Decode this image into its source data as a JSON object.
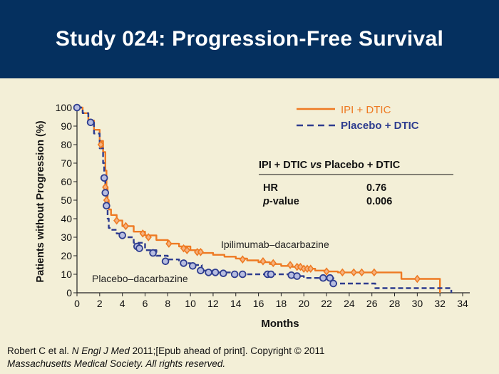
{
  "header": {
    "title": "Study 024: Progression-Free Survival"
  },
  "citation": {
    "part1": "Robert C et al. ",
    "journal": "N Engl J Med",
    "part2": " 2011;[Epub ahead of print]. Copyright © 2011",
    "line2": "Massachusetts Medical Society. All rights reserved."
  },
  "colors": {
    "header_bg": "#05305f",
    "background": "#f3efd7",
    "ipi": "#ee7a23",
    "placebo": "#2e3d8f"
  },
  "chart_data": {
    "type": "line",
    "xlabel": "Months",
    "ylabel": "Patients without Progression (%)",
    "xlim": [
      0,
      34
    ],
    "ylim": [
      0,
      100
    ],
    "xticks": [
      0,
      2,
      4,
      6,
      8,
      10,
      12,
      14,
      16,
      18,
      20,
      22,
      24,
      26,
      28,
      30,
      32,
      34
    ],
    "yticks": [
      0,
      10,
      20,
      30,
      40,
      50,
      60,
      70,
      80,
      90,
      100
    ],
    "grid": false,
    "legend_position": "top-right",
    "series": [
      {
        "name": "IPI + DTIC",
        "label": "Ipilimumab–dacarbazine",
        "color": "#ee7a23",
        "style": "solid",
        "marker": "diamond",
        "x": [
          0,
          0.5,
          1,
          1.5,
          2,
          2.3,
          2.5,
          2.6,
          2.7,
          2.8,
          3,
          3.5,
          4,
          5,
          6,
          7,
          8,
          9,
          10,
          11,
          12,
          13,
          14,
          15,
          16,
          17,
          18,
          19,
          20,
          21,
          22,
          23,
          24,
          25,
          26,
          27,
          28.6,
          29,
          30,
          31,
          32,
          32
        ],
        "y": [
          100,
          97,
          93,
          88,
          82,
          76,
          66,
          57,
          50,
          45,
          42,
          39,
          36,
          33,
          31,
          28.5,
          26.5,
          25,
          23,
          21.5,
          20.5,
          19.5,
          18.5,
          17.5,
          16.5,
          15.5,
          14.5,
          14,
          13,
          12,
          11.5,
          11,
          11,
          11,
          11,
          11,
          7.5,
          7.5,
          7.5,
          7.5,
          7.5,
          0
        ],
        "censor_x": [
          2.1,
          2.5,
          2.6,
          3.5,
          4.3,
          5.8,
          6.3,
          8.1,
          9.4,
          9.7,
          10.6,
          10.9,
          14.6,
          16.4,
          17.3,
          18.8,
          19.4,
          19.7,
          20.0,
          20.3,
          20.6,
          22.0,
          23.4,
          24.4,
          25.1,
          26.2,
          30.0
        ],
        "censor_y": [
          80,
          57,
          50,
          39,
          36,
          32,
          30,
          26.5,
          24,
          23,
          22,
          22,
          18,
          17,
          16,
          15,
          14,
          14,
          13,
          13,
          13,
          11.5,
          11,
          11,
          11,
          11,
          7.5
        ]
      },
      {
        "name": "Placebo + DTIC",
        "label": "Placebo–dacarbazine",
        "color": "#2e3d8f",
        "style": "dashed",
        "marker": "circle",
        "x": [
          0,
          0.5,
          1,
          1.5,
          2,
          2.3,
          2.4,
          2.5,
          2.6,
          2.7,
          2.8,
          3,
          3.5,
          4,
          5,
          6,
          7,
          8,
          9,
          10,
          11,
          12,
          14,
          16,
          18,
          19,
          20,
          21,
          22,
          22.6,
          24,
          26,
          26.3,
          28,
          30,
          32,
          32.8,
          33
        ],
        "y": [
          100,
          97,
          92,
          86,
          78,
          70,
          62,
          54,
          47,
          40,
          35,
          34,
          32,
          30,
          27,
          23,
          20,
          18,
          16,
          15,
          12,
          11,
          10,
          10,
          10,
          9,
          8,
          8,
          8,
          5,
          5,
          5,
          2.5,
          2.5,
          2.5,
          2.5,
          2.5,
          0
        ],
        "censor_x": [
          0,
          1.2,
          2.4,
          2.5,
          2.6,
          4.0,
          5.3,
          5.5,
          6.7,
          7.8,
          9.4,
          10.2,
          10.9,
          11.6,
          12.2,
          12.9,
          13.9,
          14.6,
          16.8,
          17.1,
          18.9,
          19.4,
          21.7,
          22.3,
          22.6
        ],
        "censor_y": [
          100,
          92,
          62,
          54,
          47,
          31,
          25,
          24,
          21.5,
          17,
          16,
          14.5,
          12,
          11,
          11,
          10.5,
          10,
          10,
          10,
          10,
          9.5,
          9,
          8,
          8,
          5
        ]
      }
    ],
    "table": {
      "header": "IPI + DTIC vs Placebo + DTIC",
      "header_parts": [
        "IPI + DTIC ",
        "vs",
        " Placebo + DTIC"
      ],
      "rows": [
        {
          "label": "HR",
          "value": "0.76"
        },
        {
          "label_prefix": "p",
          "label": "-value",
          "value": "0.006"
        }
      ]
    }
  }
}
